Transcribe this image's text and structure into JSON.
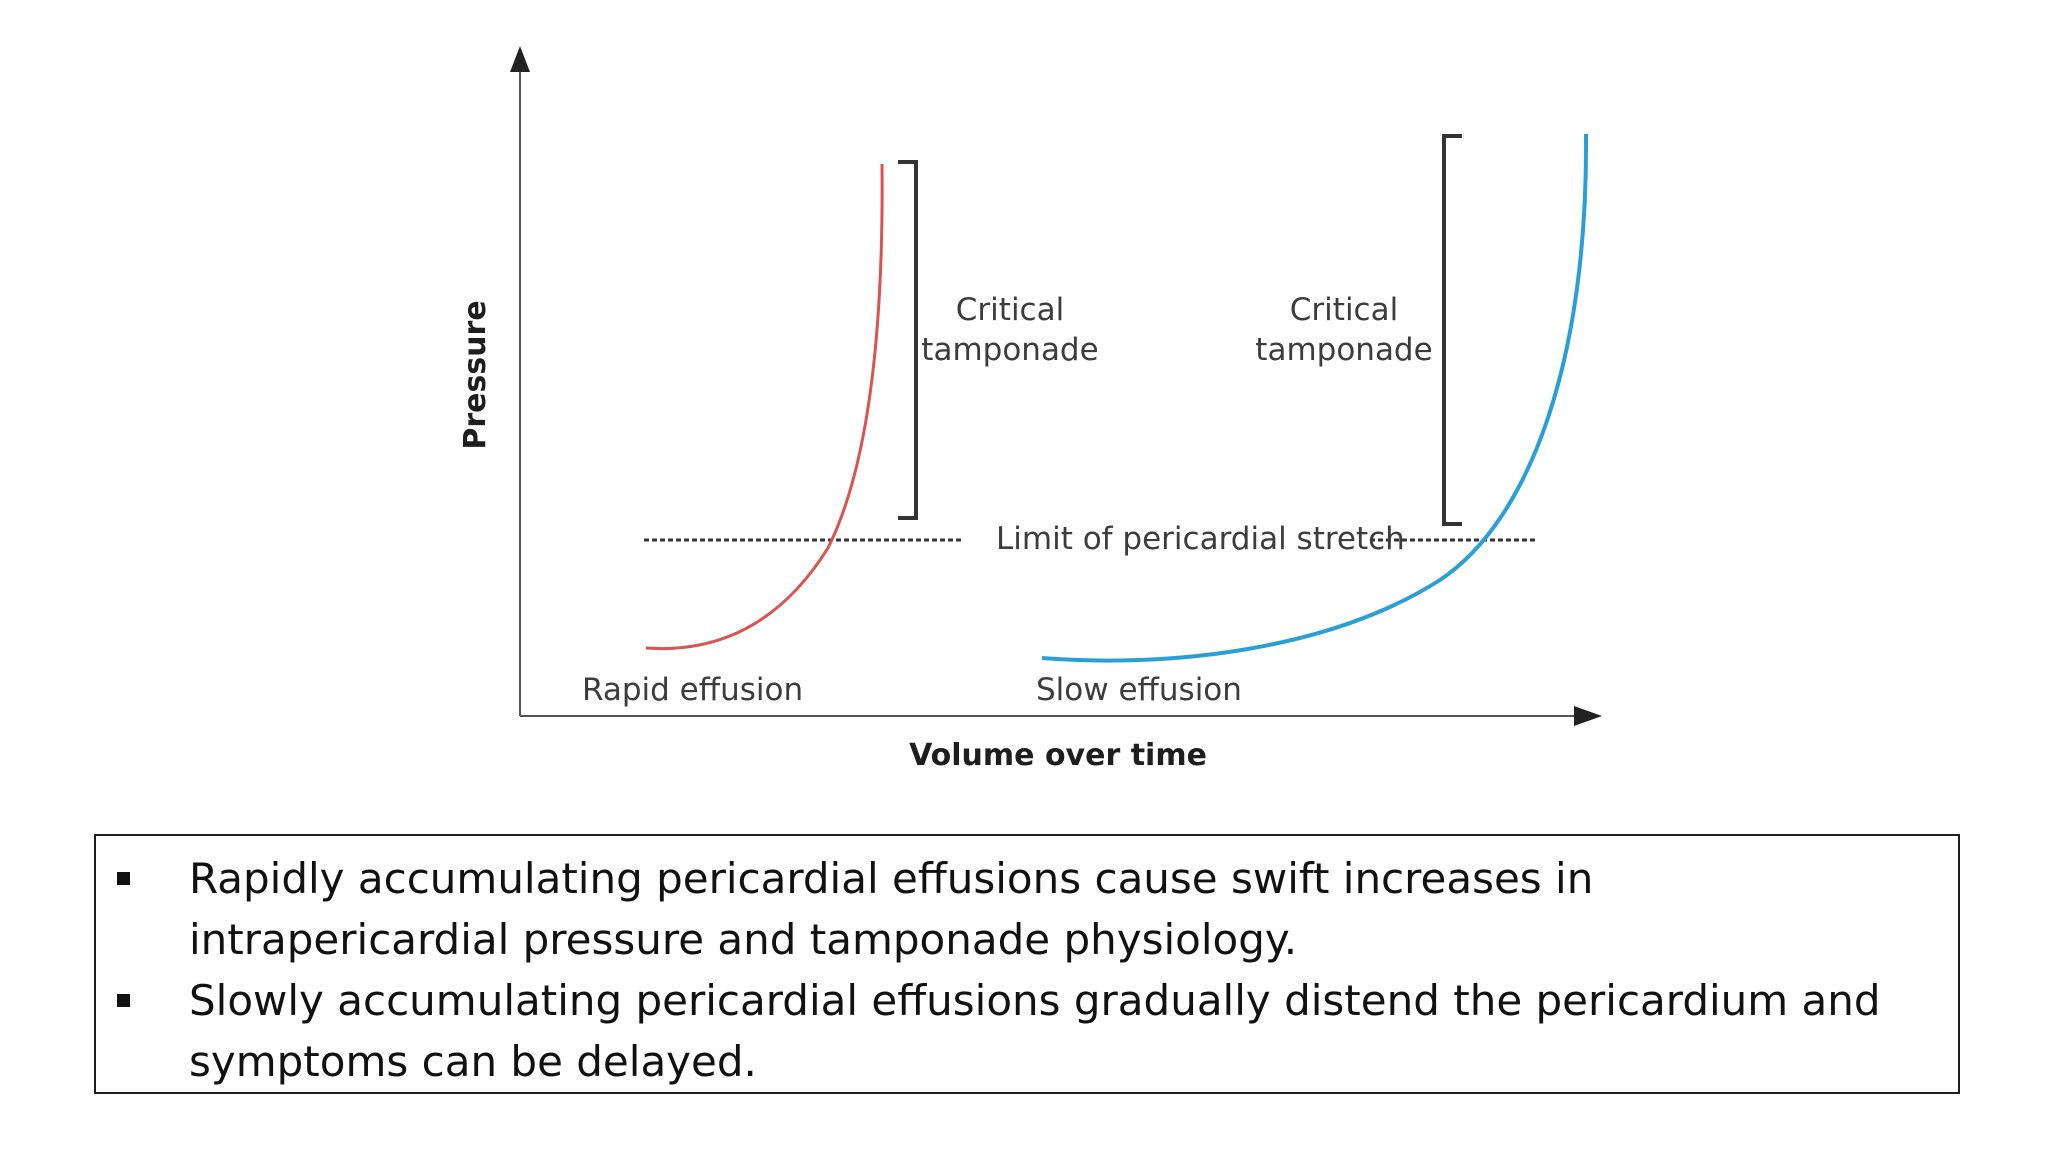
{
  "diagram": {
    "y_axis_label": "Pressure",
    "x_axis_label": "Volume over time",
    "limit_label": "Limit of pericardial stretch",
    "rapid": {
      "name": "Rapid effusion",
      "color": "#d9534f",
      "bracket_label_line1": "Critical",
      "bracket_label_line2": "tamponade"
    },
    "slow": {
      "name": "Slow effusion",
      "color": "#2a9fd6",
      "bracket_label_line1": "Critical",
      "bracket_label_line2": "tamponade"
    }
  },
  "notes": {
    "items": [
      {
        "text": "Rapidly accumulating pericardial effusions cause swift increases in intrapericardial pressure and tamponade physiology."
      },
      {
        "text": "Slowly accumulating pericardial effusions gradually distend the pericardium and symptoms can be delayed."
      }
    ]
  }
}
